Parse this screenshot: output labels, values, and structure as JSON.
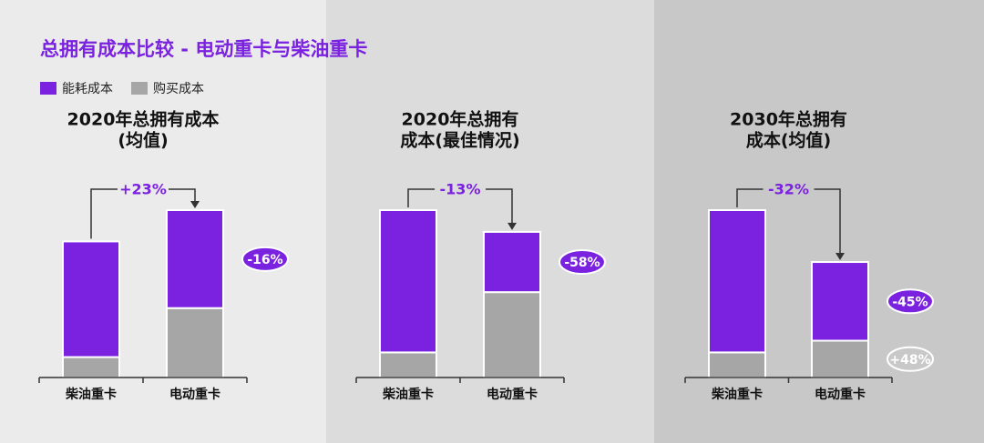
{
  "title": "总拥有成本比较 - 电动重卡与柴油重卡",
  "chart_data": [
    {
      "type": "bar",
      "stacked": true,
      "title": [
        "2020年总拥有成本",
        "(均值)"
      ],
      "categories": [
        "柴油重卡",
        "电动重卡"
      ],
      "total_change": "+23%",
      "series": [
        {
          "name": "能耗成本",
          "color": "#7b22e0",
          "values": [
            85,
            72
          ],
          "change": "-16%"
        },
        {
          "name": "购买成本",
          "color": "#a6a6a6",
          "values": [
            15,
            51
          ]
        }
      ]
    },
    {
      "type": "bar",
      "stacked": true,
      "title": [
        "2020年总拥有",
        "成本(最佳情况)"
      ],
      "categories": [
        "柴油重卡",
        "电动重卡"
      ],
      "total_change": "-13%",
      "series": [
        {
          "name": "能耗成本",
          "color": "#7b22e0",
          "values": [
            85,
            36
          ],
          "change": "-58%"
        },
        {
          "name": "购买成本",
          "color": "#a6a6a6",
          "values": [
            15,
            51
          ]
        }
      ]
    },
    {
      "type": "bar",
      "stacked": true,
      "title": [
        "2030年总拥有",
        "成本(均值)"
      ],
      "categories": [
        "柴油重卡",
        "电动重卡"
      ],
      "total_change": "-32%",
      "series": [
        {
          "name": "能耗成本",
          "color": "#7b22e0",
          "values": [
            85,
            47
          ],
          "change": "-45%"
        },
        {
          "name": "购买成本",
          "color": "#a6a6a6",
          "values": [
            15,
            22
          ],
          "change": "+48%"
        }
      ]
    }
  ]
}
